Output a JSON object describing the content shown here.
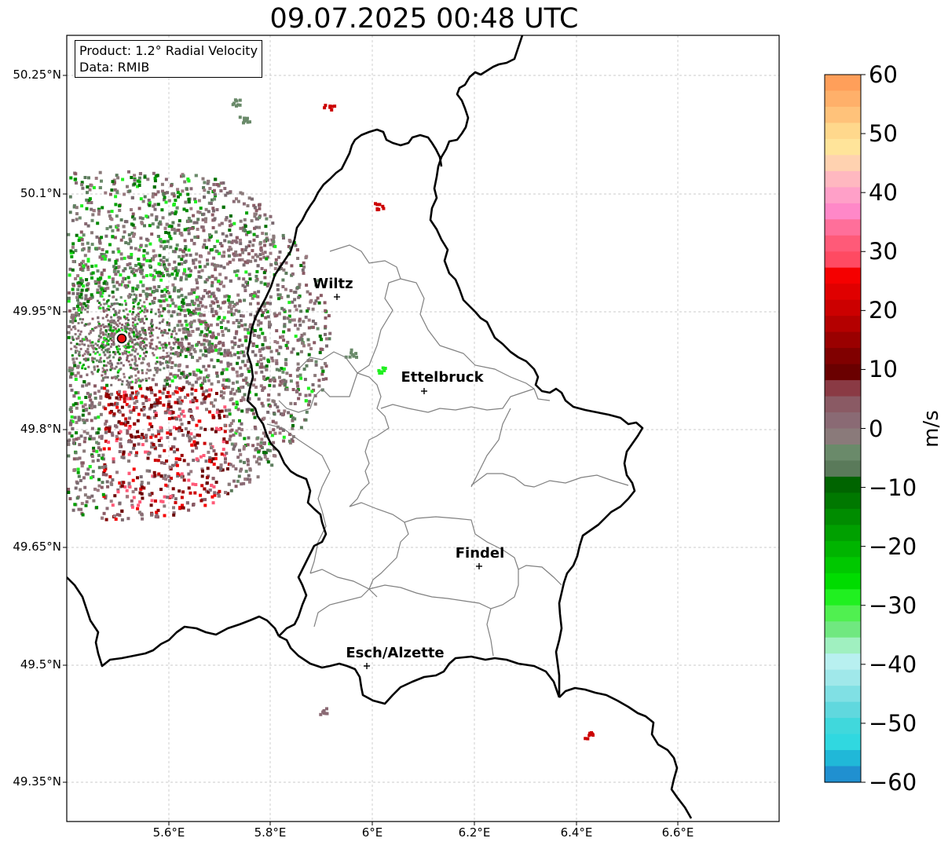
{
  "title": "09.07.2025 00:48 UTC",
  "info": {
    "product": "Product: 1.2° Radial Velocity",
    "data": "Data: RMIB"
  },
  "lat_ticks": [
    "50.25°N",
    "50.1°N",
    "49.95°N",
    "49.8°N",
    "49.65°N",
    "49.5°N",
    "49.35°N"
  ],
  "lon_ticks": [
    "5.6°E",
    "5.8°E",
    "6°E",
    "6.2°E",
    "6.4°E",
    "6.6°E"
  ],
  "cities": [
    {
      "name": "Wiltz"
    },
    {
      "name": "Ettelbruck"
    },
    {
      "name": "Findel"
    },
    {
      "name": "Esch/Alzette"
    }
  ],
  "colorbar": {
    "label": "m/s",
    "ticks": [
      "60",
      "50",
      "40",
      "30",
      "20",
      "10",
      "0",
      "−10",
      "−20",
      "−30",
      "−40",
      "−50",
      "−60"
    ],
    "min": -60,
    "max": 60,
    "colors": [
      "#ff9f5a",
      "#ffb06a",
      "#ffc27a",
      "#ffd88c",
      "#ffe49a",
      "#ffd2b0",
      "#ffb8c0",
      "#ffa0c8",
      "#ff88c8",
      "#ff6f9a",
      "#ff5a78",
      "#ff4a62",
      "#f50000",
      "#e00000",
      "#cc0000",
      "#b40000",
      "#9a0000",
      "#800000",
      "#6a0000",
      "#8a3a44",
      "#8a5a64",
      "#8a6a74",
      "#8a7a7a",
      "#6a8a6a",
      "#5a7a5a",
      "#006400",
      "#007800",
      "#008c00",
      "#00a000",
      "#00b400",
      "#00c800",
      "#00dc00",
      "#20f020",
      "#50f050",
      "#70e880",
      "#a0f0c0",
      "#b8f0f0",
      "#a0e8ea",
      "#80e0e4",
      "#60d8de",
      "#40d8dc",
      "#30d8e0",
      "#20b8d8",
      "#2090d0"
    ]
  }
}
